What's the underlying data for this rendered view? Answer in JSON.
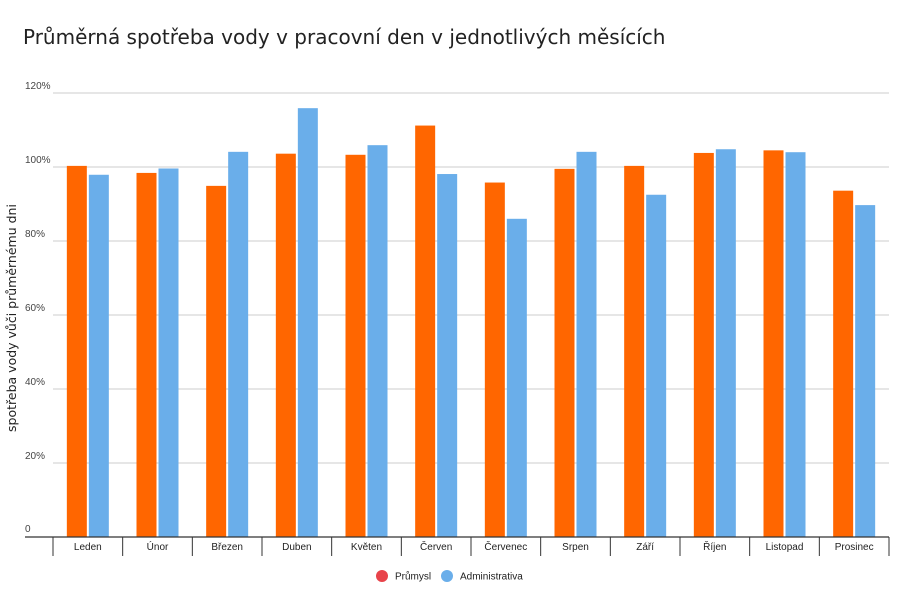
{
  "chart_data": {
    "type": "bar",
    "title": "Průměrná spotřeba vody v pracovní den v jednotlivých měsících",
    "xlabel": "",
    "ylabel": "spotřeba vody vůči průměrnému dni",
    "categories": [
      "Leden",
      "Únor",
      "Březen",
      "Duben",
      "Květen",
      "Červen",
      "Červenec",
      "Srpen",
      "Září",
      "Říjen",
      "Listopad",
      "Prosinec"
    ],
    "series": [
      {
        "name": "Průmysl",
        "color": "#ff6600",
        "legend_color": "#e8434a",
        "values": [
          100.3,
          98.4,
          94.9,
          103.6,
          103.3,
          111.2,
          95.8,
          99.5,
          100.3,
          103.8,
          104.5,
          93.6
        ]
      },
      {
        "name": "Administrativa",
        "color": "#6aaeea",
        "legend_color": "#6aaeea",
        "values": [
          97.9,
          99.6,
          104.1,
          115.9,
          105.9,
          98.1,
          86.0,
          104.1,
          92.5,
          104.8,
          104.0,
          89.7
        ]
      }
    ],
    "ylim": [
      0,
      120
    ],
    "yticks": [
      0,
      20,
      40,
      60,
      80,
      100,
      120
    ],
    "ytick_labels": [
      "0",
      "20%",
      "40%",
      "60%",
      "80%",
      "100%",
      "120%"
    ],
    "grid": true,
    "legend_position": "bottom-center"
  }
}
